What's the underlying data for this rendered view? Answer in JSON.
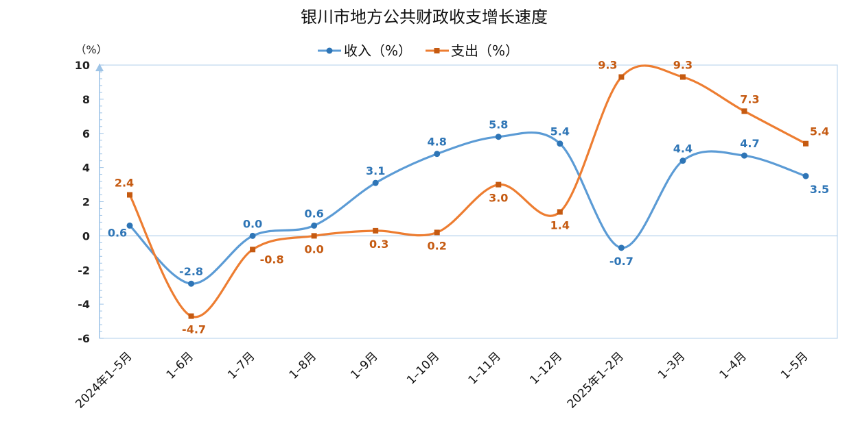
{
  "chart_data": {
    "type": "line",
    "title": "银川市地方公共财政收支增长速度",
    "yunit": "（%）",
    "categories": [
      "2024年1–5月",
      "1–6月",
      "1–7月",
      "1–8月",
      "1–9月",
      "1–10月",
      "1–11月",
      "1–12月",
      "2025年1–2月",
      "1–3月",
      "1–4月",
      "1–5月"
    ],
    "ylim": [
      -6,
      10
    ],
    "yticks": [
      10,
      8,
      6,
      4,
      2,
      0,
      -2,
      -4,
      -6
    ],
    "legend_position": "top-center",
    "smooth": true,
    "series": [
      {
        "name": "收入（%）",
        "color": "#5B9BD5",
        "label_color": "#2E75B6",
        "marker": "circle",
        "values": [
          0.6,
          -2.8,
          0.0,
          0.6,
          3.1,
          4.8,
          5.8,
          5.4,
          -0.7,
          4.4,
          4.7,
          3.5
        ],
        "labels": [
          "0.6",
          "-2.8",
          "0.0",
          "0.6",
          "3.1",
          "4.8",
          "5.8",
          "5.4",
          "-0.7",
          "4.4",
          "4.7",
          "3.5"
        ]
      },
      {
        "name": "支出（%）",
        "color": "#ED7D31",
        "label_color": "#C55A11",
        "marker": "square",
        "values": [
          2.4,
          -4.7,
          -0.8,
          0.0,
          0.3,
          0.2,
          3.0,
          1.4,
          9.3,
          9.3,
          7.3,
          5.4
        ],
        "labels": [
          "2.4",
          "-4.7",
          "-0.8",
          "0.0",
          "0.3",
          "0.2",
          "3.0",
          "1.4",
          "9.3",
          "9.3",
          "7.3",
          "5.4"
        ]
      }
    ]
  }
}
